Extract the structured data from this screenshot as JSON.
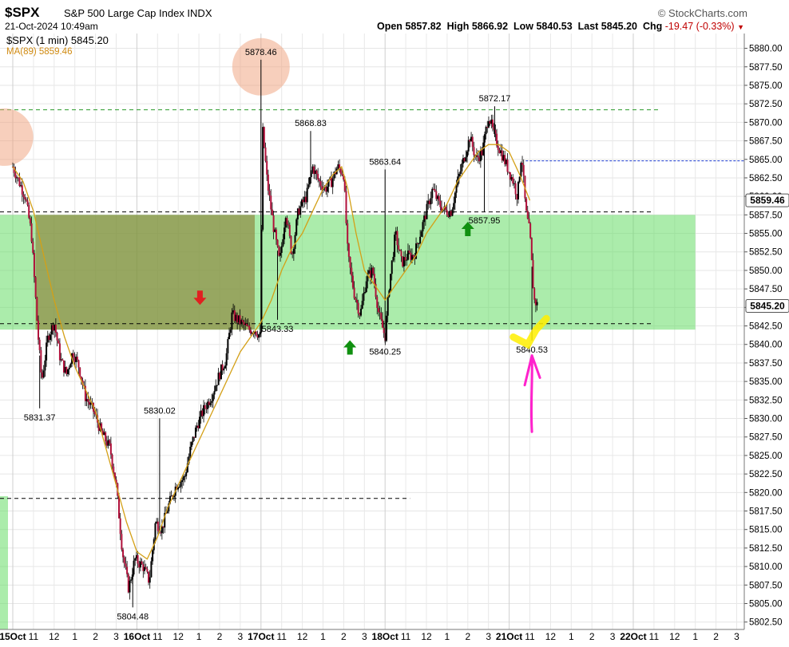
{
  "header": {
    "symbol": "$SPX",
    "description": "S&P 500 Large Cap Index INDX",
    "date": "21-Oct-2024 10:49am",
    "source": "© StockCharts.com",
    "open_label": "Open",
    "open": "5857.82",
    "high_label": "High",
    "high": "5866.92",
    "low_label": "Low",
    "low": "5840.53",
    "last_label": "Last",
    "last": "5845.20",
    "chg_label": "Chg",
    "chg": "-19.47 (-0.33%)"
  },
  "legend": {
    "price": "$SPX (1 min) 5845.20",
    "ma": "MA(89) 5859.46"
  },
  "colors": {
    "candle": "#b0103a",
    "ma": "#d4a017",
    "zone": "#66dd66",
    "zone_dark": "#8a7a30",
    "resistance": "#2a9a2a",
    "support": "#000000",
    "blue_line": "#1a3ad0",
    "highlight_circle": "#f0a07a",
    "arrow_down": "#e02020",
    "arrow_up": "#109010",
    "marker": "#ff22cc",
    "yellow": "#ffee00"
  },
  "chart_data": {
    "type": "candlestick",
    "interval": "1 min",
    "ylim": [
      5801.5,
      5882
    ],
    "y_ticks": [
      "5880.00",
      "5877.50",
      "5875.00",
      "5872.50",
      "5870.00",
      "5867.50",
      "5865.00",
      "5862.50",
      "5860.00",
      "5857.50",
      "5855.00",
      "5852.50",
      "5850.00",
      "5847.50",
      "5845.00",
      "5842.50",
      "5840.00",
      "5837.50",
      "5835.00",
      "5832.50",
      "5830.00",
      "5827.50",
      "5825.00",
      "5822.50",
      "5820.00",
      "5817.50",
      "5815.00",
      "5812.50",
      "5810.00",
      "5807.50",
      "5805.00",
      "5802.50"
    ],
    "x_ticks": [
      "15Oct",
      "11",
      "12",
      "1",
      "2",
      "3",
      "16Oct",
      "11",
      "12",
      "1",
      "2",
      "3",
      "17Oct",
      "11",
      "12",
      "1",
      "2",
      "3",
      "18Oct",
      "11",
      "12",
      "1",
      "2",
      "3",
      "21Oct",
      "11",
      "12",
      "1",
      "2",
      "3",
      "22Oct",
      "11",
      "12",
      "1",
      "2",
      "3"
    ],
    "x_tick_values": [
      0,
      1,
      2,
      3,
      4,
      5,
      6,
      7,
      8,
      9,
      10,
      11,
      12,
      13,
      14,
      15,
      16,
      17,
      18,
      19,
      20,
      21,
      22,
      23,
      24,
      25,
      26,
      27,
      28,
      29,
      30,
      31,
      32,
      33,
      34,
      35
    ],
    "path": [
      [
        0,
        5864
      ],
      [
        0.3,
        5862
      ],
      [
        0.6,
        5860
      ],
      [
        0.9,
        5855
      ],
      [
        1.2,
        5842
      ],
      [
        1.4,
        5835
      ],
      [
        1.7,
        5841
      ],
      [
        2,
        5843
      ],
      [
        2.3,
        5838
      ],
      [
        2.6,
        5836
      ],
      [
        2.9,
        5839
      ],
      [
        3.2,
        5837
      ],
      [
        3.5,
        5833
      ],
      [
        3.9,
        5831
      ],
      [
        4.3,
        5828
      ],
      [
        4.7,
        5826
      ],
      [
        5,
        5821
      ],
      [
        5.3,
        5812
      ],
      [
        5.6,
        5807
      ],
      [
        5.9,
        5811
      ],
      [
        6.3,
        5810
      ],
      [
        6.6,
        5808
      ],
      [
        6.9,
        5816
      ],
      [
        7.2,
        5815
      ],
      [
        7.5,
        5818
      ],
      [
        7.9,
        5821
      ],
      [
        8.3,
        5822
      ],
      [
        8.6,
        5826
      ],
      [
        8.9,
        5829
      ],
      [
        9.2,
        5831
      ],
      [
        9.6,
        5833
      ],
      [
        10,
        5836
      ],
      [
        10.3,
        5838
      ],
      [
        10.6,
        5844
      ],
      [
        11,
        5843
      ],
      [
        11.4,
        5842
      ],
      [
        11.7,
        5842
      ],
      [
        12,
        5841
      ],
      [
        12.05,
        5870
      ],
      [
        12.3,
        5862
      ],
      [
        12.6,
        5856
      ],
      [
        12.9,
        5851
      ],
      [
        13.2,
        5858
      ],
      [
        13.5,
        5852
      ],
      [
        13.8,
        5858
      ],
      [
        14.2,
        5860
      ],
      [
        14.5,
        5864
      ],
      [
        14.8,
        5862
      ],
      [
        15.1,
        5861
      ],
      [
        15.4,
        5862
      ],
      [
        15.7,
        5864
      ],
      [
        16,
        5863
      ],
      [
        16.2,
        5852
      ],
      [
        16.5,
        5847
      ],
      [
        16.8,
        5844
      ],
      [
        17.1,
        5849
      ],
      [
        17.4,
        5850
      ],
      [
        17.7,
        5844
      ],
      [
        18,
        5841
      ],
      [
        18.2,
        5848
      ],
      [
        18.5,
        5855
      ],
      [
        18.8,
        5851
      ],
      [
        19.1,
        5852
      ],
      [
        19.4,
        5852
      ],
      [
        19.7,
        5855
      ],
      [
        20,
        5858
      ],
      [
        20.3,
        5861
      ],
      [
        20.6,
        5859
      ],
      [
        20.9,
        5858
      ],
      [
        21.2,
        5858
      ],
      [
        21.5,
        5862
      ],
      [
        21.8,
        5865
      ],
      [
        22.1,
        5868
      ],
      [
        22.4,
        5865
      ],
      [
        22.7,
        5866
      ],
      [
        23,
        5871
      ],
      [
        23.3,
        5868
      ],
      [
        23.6,
        5866
      ],
      [
        23.9,
        5864
      ],
      [
        24.2,
        5862
      ],
      [
        24.4,
        5860
      ],
      [
        24.6,
        5866
      ],
      [
        24.8,
        5858
      ],
      [
        25,
        5855
      ],
      [
        25.2,
        5846
      ],
      [
        25.4,
        5845.2
      ]
    ],
    "ma89": [
      [
        0,
        5864
      ],
      [
        0.5,
        5862
      ],
      [
        1,
        5858
      ],
      [
        1.5,
        5852
      ],
      [
        2,
        5846
      ],
      [
        2.5,
        5841
      ],
      [
        3,
        5837
      ],
      [
        3.5,
        5834
      ],
      [
        4,
        5831
      ],
      [
        4.5,
        5826
      ],
      [
        5,
        5821
      ],
      [
        5.5,
        5816
      ],
      [
        6,
        5812
      ],
      [
        6.5,
        5811
      ],
      [
        7,
        5814
      ],
      [
        7.5,
        5818
      ],
      [
        8,
        5821
      ],
      [
        8.5,
        5824
      ],
      [
        9,
        5827
      ],
      [
        9.5,
        5830
      ],
      [
        10,
        5833
      ],
      [
        10.5,
        5836
      ],
      [
        11,
        5839
      ],
      [
        11.5,
        5841
      ],
      [
        12,
        5843
      ],
      [
        12.5,
        5846
      ],
      [
        13,
        5850
      ],
      [
        13.5,
        5853
      ],
      [
        14,
        5855
      ],
      [
        14.5,
        5858
      ],
      [
        15,
        5861
      ],
      [
        15.5,
        5863
      ],
      [
        15.9,
        5864
      ],
      [
        16.2,
        5861
      ],
      [
        16.6,
        5855
      ],
      [
        17,
        5850
      ],
      [
        17.5,
        5848
      ],
      [
        18,
        5846
      ],
      [
        18.5,
        5848
      ],
      [
        19,
        5850
      ],
      [
        19.5,
        5852
      ],
      [
        20,
        5855
      ],
      [
        20.5,
        5857
      ],
      [
        21,
        5859
      ],
      [
        21.5,
        5862
      ],
      [
        22,
        5864
      ],
      [
        22.5,
        5866
      ],
      [
        23,
        5867
      ],
      [
        23.5,
        5867
      ],
      [
        24,
        5866
      ],
      [
        24.5,
        5863
      ],
      [
        25,
        5859.46
      ]
    ],
    "annotations": [
      "5878.46",
      "5868.83",
      "5863.64",
      "5872.17",
      "5831.37",
      "5830.02",
      "5843.33",
      "5840.25",
      "5857.95",
      "5840.53",
      "5804.48"
    ],
    "annotation_points": [
      [
        12,
        5878.46
      ],
      [
        14.4,
        5868.83
      ],
      [
        18,
        5863.64
      ],
      [
        23.3,
        5872.17
      ],
      [
        1.3,
        5831.37
      ],
      [
        7.1,
        5830.02
      ],
      [
        12.8,
        5843.33
      ],
      [
        18,
        5840.25
      ],
      [
        22.8,
        5857.95
      ],
      [
        25.1,
        5840.53
      ],
      [
        5.8,
        5804.48
      ]
    ],
    "levels": {
      "resistance": 5871.7,
      "support_top": 5857.9,
      "support_bottom": 5842.8,
      "blue": 5864.8,
      "lower": 5819.2
    },
    "zone": [
      5842,
      5857.5
    ],
    "price_tag": "5845.20",
    "ma_tag": "5859.46"
  }
}
